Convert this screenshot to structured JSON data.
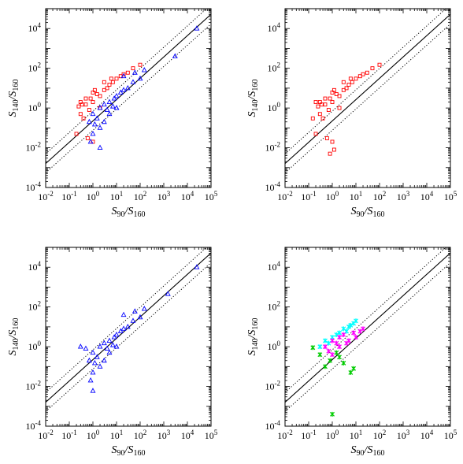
{
  "chart_data": [
    {
      "panel": "top-left",
      "type": "scatter",
      "xlabel": "S90/S160",
      "ylabel": "S140/S160",
      "xscale": "log",
      "yscale": "log",
      "xlim": [
        0.01,
        100000
      ],
      "ylim": [
        0.0001,
        100000
      ],
      "grid": false,
      "lines": [
        {
          "style": "solid",
          "color": "#000000",
          "x": [
            0.01,
            100000
          ],
          "y": [
            0.0016,
            52000
          ]
        },
        {
          "style": "dotted",
          "color": "#000000",
          "x": [
            0.01,
            100000
          ],
          "y": [
            0.005,
            160000
          ]
        },
        {
          "style": "dotted",
          "color": "#000000",
          "x": [
            0.01,
            100000
          ],
          "y": [
            0.00055,
            17000
          ]
        }
      ],
      "series": [
        {
          "marker": "square",
          "color": "#ff0000",
          "points": [
            [
              0.3,
              0.5
            ],
            [
              0.5,
              1.5
            ],
            [
              0.8,
              3
            ],
            [
              1,
              2
            ],
            [
              1.5,
              5
            ],
            [
              2,
              4
            ],
            [
              3,
              8
            ],
            [
              4,
              10
            ],
            [
              5,
              15
            ],
            [
              7,
              20
            ],
            [
              10,
              30
            ],
            [
              15,
              40
            ],
            [
              20,
              50
            ],
            [
              30,
              60
            ],
            [
              0.2,
              0.05
            ],
            [
              0.6,
              0.03
            ],
            [
              1,
              0.02
            ],
            [
              0.4,
              0.3
            ],
            [
              0.7,
              0.8
            ],
            [
              2,
              1
            ],
            [
              0.35,
              1.5
            ],
            [
              0.25,
              1.2
            ],
            [
              1.2,
              8
            ],
            [
              3,
              20
            ],
            [
              6,
              30
            ],
            [
              50,
              100
            ],
            [
              100,
              150
            ],
            [
              0.5,
              3
            ],
            [
              0.3,
              2
            ],
            [
              1,
              6
            ]
          ]
        },
        {
          "marker": "triangle",
          "color": "#0000ff",
          "points": [
            [
              1,
              0.5
            ],
            [
              2,
              1
            ],
            [
              3,
              1.5
            ],
            [
              5,
              2
            ],
            [
              8,
              3
            ],
            [
              10,
              4
            ],
            [
              15,
              6
            ],
            [
              20,
              8
            ],
            [
              30,
              10
            ],
            [
              50,
              20
            ],
            [
              100,
              30
            ],
            [
              1.5,
              0.3
            ],
            [
              2,
              0.1
            ],
            [
              3,
              0.2
            ],
            [
              1,
              0.05
            ],
            [
              0.8,
              0.02
            ],
            [
              2,
              0.01
            ],
            [
              5,
              0.5
            ],
            [
              10,
              1
            ],
            [
              20,
              40
            ],
            [
              25000,
              10000
            ],
            [
              3000,
              400
            ],
            [
              0.7,
              0.2
            ],
            [
              4,
              0.8
            ],
            [
              7,
              1.2
            ],
            [
              60,
              60
            ],
            [
              150,
              80
            ],
            [
              1.2,
              0.15
            ]
          ]
        }
      ]
    },
    {
      "panel": "top-right",
      "type": "scatter",
      "xlabel": "S90/S160",
      "ylabel": "S140/S160",
      "xscale": "log",
      "yscale": "log",
      "xlim": [
        0.01,
        100000
      ],
      "ylim": [
        0.0001,
        100000
      ],
      "grid": false,
      "lines": [
        {
          "style": "solid",
          "color": "#000000",
          "x": [
            0.01,
            100000
          ],
          "y": [
            0.0016,
            52000
          ]
        },
        {
          "style": "dotted",
          "color": "#000000",
          "x": [
            0.01,
            100000
          ],
          "y": [
            0.005,
            160000
          ]
        },
        {
          "style": "dotted",
          "color": "#000000",
          "x": [
            0.01,
            100000
          ],
          "y": [
            0.00055,
            17000
          ]
        }
      ],
      "series": [
        {
          "marker": "square",
          "color": "#ff0000",
          "points": [
            [
              0.3,
              0.5
            ],
            [
              0.5,
              1.5
            ],
            [
              0.8,
              3
            ],
            [
              1,
              2
            ],
            [
              1.5,
              5
            ],
            [
              2,
              4
            ],
            [
              3,
              8
            ],
            [
              4,
              10
            ],
            [
              5,
              15
            ],
            [
              7,
              20
            ],
            [
              10,
              30
            ],
            [
              15,
              40
            ],
            [
              20,
              50
            ],
            [
              30,
              60
            ],
            [
              0.2,
              0.05
            ],
            [
              0.6,
              0.03
            ],
            [
              1,
              0.02
            ],
            [
              0.4,
              0.3
            ],
            [
              0.7,
              0.8
            ],
            [
              2,
              1
            ],
            [
              0.35,
              1.5
            ],
            [
              0.25,
              1.2
            ],
            [
              1.2,
              8
            ],
            [
              3,
              20
            ],
            [
              6,
              30
            ],
            [
              50,
              100
            ],
            [
              100,
              150
            ],
            [
              0.5,
              3
            ],
            [
              0.3,
              2
            ],
            [
              1,
              6
            ],
            [
              0.8,
              0.005
            ],
            [
              1.2,
              0.008
            ],
            [
              0.15,
              0.3
            ],
            [
              0.2,
              2
            ]
          ]
        }
      ]
    },
    {
      "panel": "bottom-left",
      "type": "scatter",
      "xlabel": "S90/S160",
      "ylabel": "S140/S160",
      "xscale": "log",
      "yscale": "log",
      "xlim": [
        0.01,
        100000
      ],
      "ylim": [
        0.0001,
        100000
      ],
      "grid": false,
      "lines": [
        {
          "style": "solid",
          "color": "#000000",
          "x": [
            0.01,
            100000
          ],
          "y": [
            0.0016,
            52000
          ]
        },
        {
          "style": "dotted",
          "color": "#000000",
          "x": [
            0.01,
            100000
          ],
          "y": [
            0.005,
            160000
          ]
        },
        {
          "style": "dotted",
          "color": "#000000",
          "x": [
            0.01,
            100000
          ],
          "y": [
            0.00055,
            17000
          ]
        }
      ],
      "series": [
        {
          "marker": "triangle",
          "color": "#0000ff",
          "points": [
            [
              1,
              0.5
            ],
            [
              2,
              1
            ],
            [
              3,
              1.5
            ],
            [
              5,
              2
            ],
            [
              8,
              3
            ],
            [
              10,
              4
            ],
            [
              15,
              6
            ],
            [
              20,
              8
            ],
            [
              30,
              10
            ],
            [
              50,
              20
            ],
            [
              100,
              30
            ],
            [
              1.5,
              0.3
            ],
            [
              2,
              0.1
            ],
            [
              3,
              0.2
            ],
            [
              1,
              0.05
            ],
            [
              0.8,
              0.02
            ],
            [
              1,
              0.006
            ],
            [
              5,
              0.5
            ],
            [
              10,
              1
            ],
            [
              20,
              40
            ],
            [
              25000,
              10000
            ],
            [
              1500,
              450
            ],
            [
              0.7,
              0.2
            ],
            [
              4,
              0.8
            ],
            [
              7,
              1.2
            ],
            [
              60,
              60
            ],
            [
              150,
              80
            ],
            [
              1.2,
              0.15
            ],
            [
              0.5,
              0.8
            ],
            [
              0.3,
              1
            ]
          ]
        }
      ]
    },
    {
      "panel": "bottom-right",
      "type": "scatter",
      "xlabel": "S90/S160",
      "ylabel": "S140/S160",
      "xscale": "log",
      "yscale": "log",
      "xlim": [
        0.01,
        100000
      ],
      "ylim": [
        0.0001,
        100000
      ],
      "grid": false,
      "lines": [
        {
          "style": "solid",
          "color": "#000000",
          "x": [
            0.01,
            100000
          ],
          "y": [
            0.0016,
            52000
          ]
        },
        {
          "style": "dotted",
          "color": "#000000",
          "x": [
            0.01,
            100000
          ],
          "y": [
            0.005,
            160000
          ]
        },
        {
          "style": "dotted",
          "color": "#000000",
          "x": [
            0.01,
            100000
          ],
          "y": [
            0.00055,
            17000
          ]
        }
      ],
      "series": [
        {
          "marker": "star",
          "color": "#00ffff",
          "points": [
            [
              0.5,
              2
            ],
            [
              1,
              3
            ],
            [
              2,
              5
            ],
            [
              3,
              8
            ],
            [
              5,
              10
            ],
            [
              8,
              15
            ],
            [
              10,
              20
            ],
            [
              0.3,
              1
            ],
            [
              0.7,
              1.5
            ],
            [
              1.5,
              4
            ],
            [
              4,
              6
            ],
            [
              6,
              12
            ]
          ]
        },
        {
          "marker": "star",
          "color": "#ff00ff",
          "points": [
            [
              0.5,
              1
            ],
            [
              1,
              2
            ],
            [
              1.5,
              1.5
            ],
            [
              2,
              3
            ],
            [
              3,
              4
            ],
            [
              5,
              2
            ],
            [
              8,
              5
            ],
            [
              10,
              3
            ],
            [
              0.7,
              0.6
            ],
            [
              1,
              0.4
            ],
            [
              2,
              1
            ],
            [
              4,
              1.5
            ],
            [
              15,
              6
            ],
            [
              20,
              8
            ]
          ]
        },
        {
          "marker": "star",
          "color": "#00cc00",
          "points": [
            [
              0.15,
              0.9
            ],
            [
              0.3,
              0.4
            ],
            [
              0.5,
              0.1
            ],
            [
              1,
              0.0004
            ],
            [
              2,
              0.3
            ],
            [
              3,
              0.15
            ],
            [
              6,
              0.05
            ],
            [
              8,
              0.08
            ],
            [
              0.8,
              0.2
            ],
            [
              1.5,
              0.5
            ]
          ]
        }
      ]
    }
  ]
}
